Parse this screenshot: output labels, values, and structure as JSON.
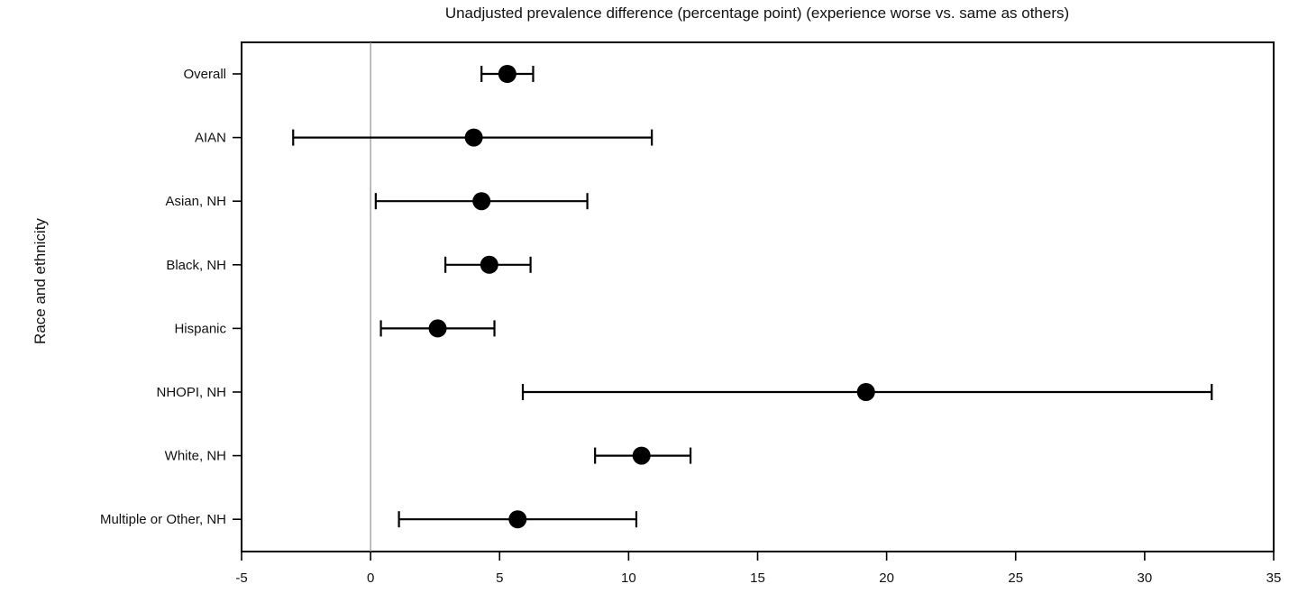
{
  "chart_data": {
    "type": "scatter",
    "title": "Unadjusted prevalence difference (percentage point) (experience worse vs. same as others)",
    "xlabel": "",
    "ylabel": "Race and ethnicity",
    "xlim": [
      -5,
      35
    ],
    "xticks": [
      -5,
      0,
      5,
      10,
      15,
      20,
      25,
      30,
      35
    ],
    "reference_line_x": 0,
    "categories": [
      "Overall",
      "AIAN",
      "Asian, NH",
      "Black, NH",
      "Hispanic",
      "NHOPI, NH",
      "White, NH",
      "Multiple or Other, NH"
    ],
    "points": [
      {
        "category": "Overall",
        "estimate": 5.3,
        "lower": 4.3,
        "upper": 6.3
      },
      {
        "category": "AIAN",
        "estimate": 4.0,
        "lower": -3.0,
        "upper": 10.9
      },
      {
        "category": "Asian, NH",
        "estimate": 4.3,
        "lower": 0.2,
        "upper": 8.4
      },
      {
        "category": "Black, NH",
        "estimate": 4.6,
        "lower": 2.9,
        "upper": 6.2
      },
      {
        "category": "Hispanic",
        "estimate": 2.6,
        "lower": 0.4,
        "upper": 4.8
      },
      {
        "category": "NHOPI, NH",
        "estimate": 19.2,
        "lower": 5.9,
        "upper": 32.6
      },
      {
        "category": "White, NH",
        "estimate": 10.5,
        "lower": 8.7,
        "upper": 12.4
      },
      {
        "category": "Multiple or Other, NH",
        "estimate": 5.7,
        "lower": 1.1,
        "upper": 10.3
      }
    ],
    "grid": false,
    "legend": "none"
  }
}
